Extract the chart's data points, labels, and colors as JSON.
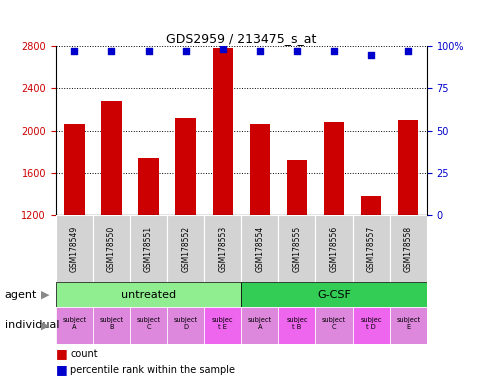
{
  "title": "GDS2959 / 213475_s_at",
  "samples": [
    "GSM178549",
    "GSM178550",
    "GSM178551",
    "GSM178552",
    "GSM178553",
    "GSM178554",
    "GSM178555",
    "GSM178556",
    "GSM178557",
    "GSM178558"
  ],
  "counts": [
    2060,
    2280,
    1740,
    2120,
    2780,
    2060,
    1720,
    2080,
    1380,
    2100
  ],
  "percentile_ranks": [
    97,
    97,
    97,
    97,
    98,
    97,
    97,
    97,
    95,
    97
  ],
  "ylim_left": [
    1200,
    2800
  ],
  "ylim_right": [
    0,
    100
  ],
  "yticks_left": [
    1200,
    1600,
    2000,
    2400,
    2800
  ],
  "yticks_right": [
    0,
    25,
    50,
    75,
    100
  ],
  "agent_groups": [
    {
      "label": "untreated",
      "start": 0,
      "end": 5,
      "color": "#90ee90"
    },
    {
      "label": "G-CSF",
      "start": 5,
      "end": 10,
      "color": "#33cc55"
    }
  ],
  "individuals": [
    "subject\nA",
    "subject\nB",
    "subject\nC",
    "subject\nD",
    "subjec\nt E",
    "subject\nA",
    "subjec\nt B",
    "subject\nC",
    "subjec\nt D",
    "subject\nE"
  ],
  "individual_highlight_indices": [
    4,
    6,
    8
  ],
  "bar_color": "#cc0000",
  "dot_color": "#0000cc",
  "tick_color_left": "#cc0000",
  "tick_color_right": "#0000cc",
  "label_row_agent": "agent",
  "label_row_individual": "individual",
  "gsm_box_color": "#d3d3d3",
  "individual_normal_color": "#dd88dd",
  "individual_highlight_color": "#ee66ee",
  "bar_width": 0.55
}
